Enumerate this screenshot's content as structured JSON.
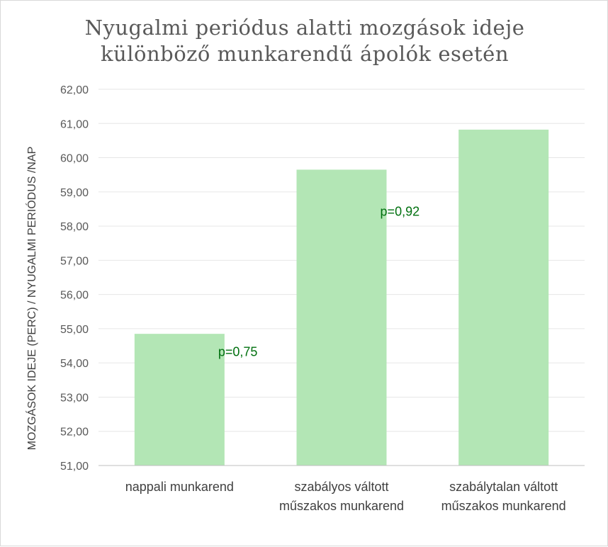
{
  "chart_data": {
    "type": "bar",
    "title": [
      "Nyugalmi periódus alatti mozgások ideje",
      "különböző munkarendű ápolók esetén"
    ],
    "ylabel": "MOZGÁSOK IDEJE (PERC) / NYUGALMI PERIÓDUS /NAP",
    "xlabel": "",
    "categories": [
      [
        "nappali munkarend"
      ],
      [
        "szabályos váltott",
        "műszakos munkarend"
      ],
      [
        "szabálytalan váltott",
        "műszakos munkarend"
      ]
    ],
    "values": [
      54.85,
      59.65,
      60.82
    ],
    "ylim": [
      51,
      62
    ],
    "yticks": [
      51,
      52,
      53,
      54,
      55,
      56,
      57,
      58,
      59,
      60,
      61,
      62
    ],
    "tick_format": "2 decimals, comma separator",
    "grid": true,
    "legend": "none",
    "bar_color": "#b3e6b5",
    "annotations": [
      {
        "text": "p=0,75",
        "between": [
          0,
          1
        ],
        "y": 54.35,
        "color": "#00700f"
      },
      {
        "text": "p=0,92",
        "between": [
          1,
          2
        ],
        "y": 58.45,
        "color": "#00700f"
      }
    ]
  }
}
